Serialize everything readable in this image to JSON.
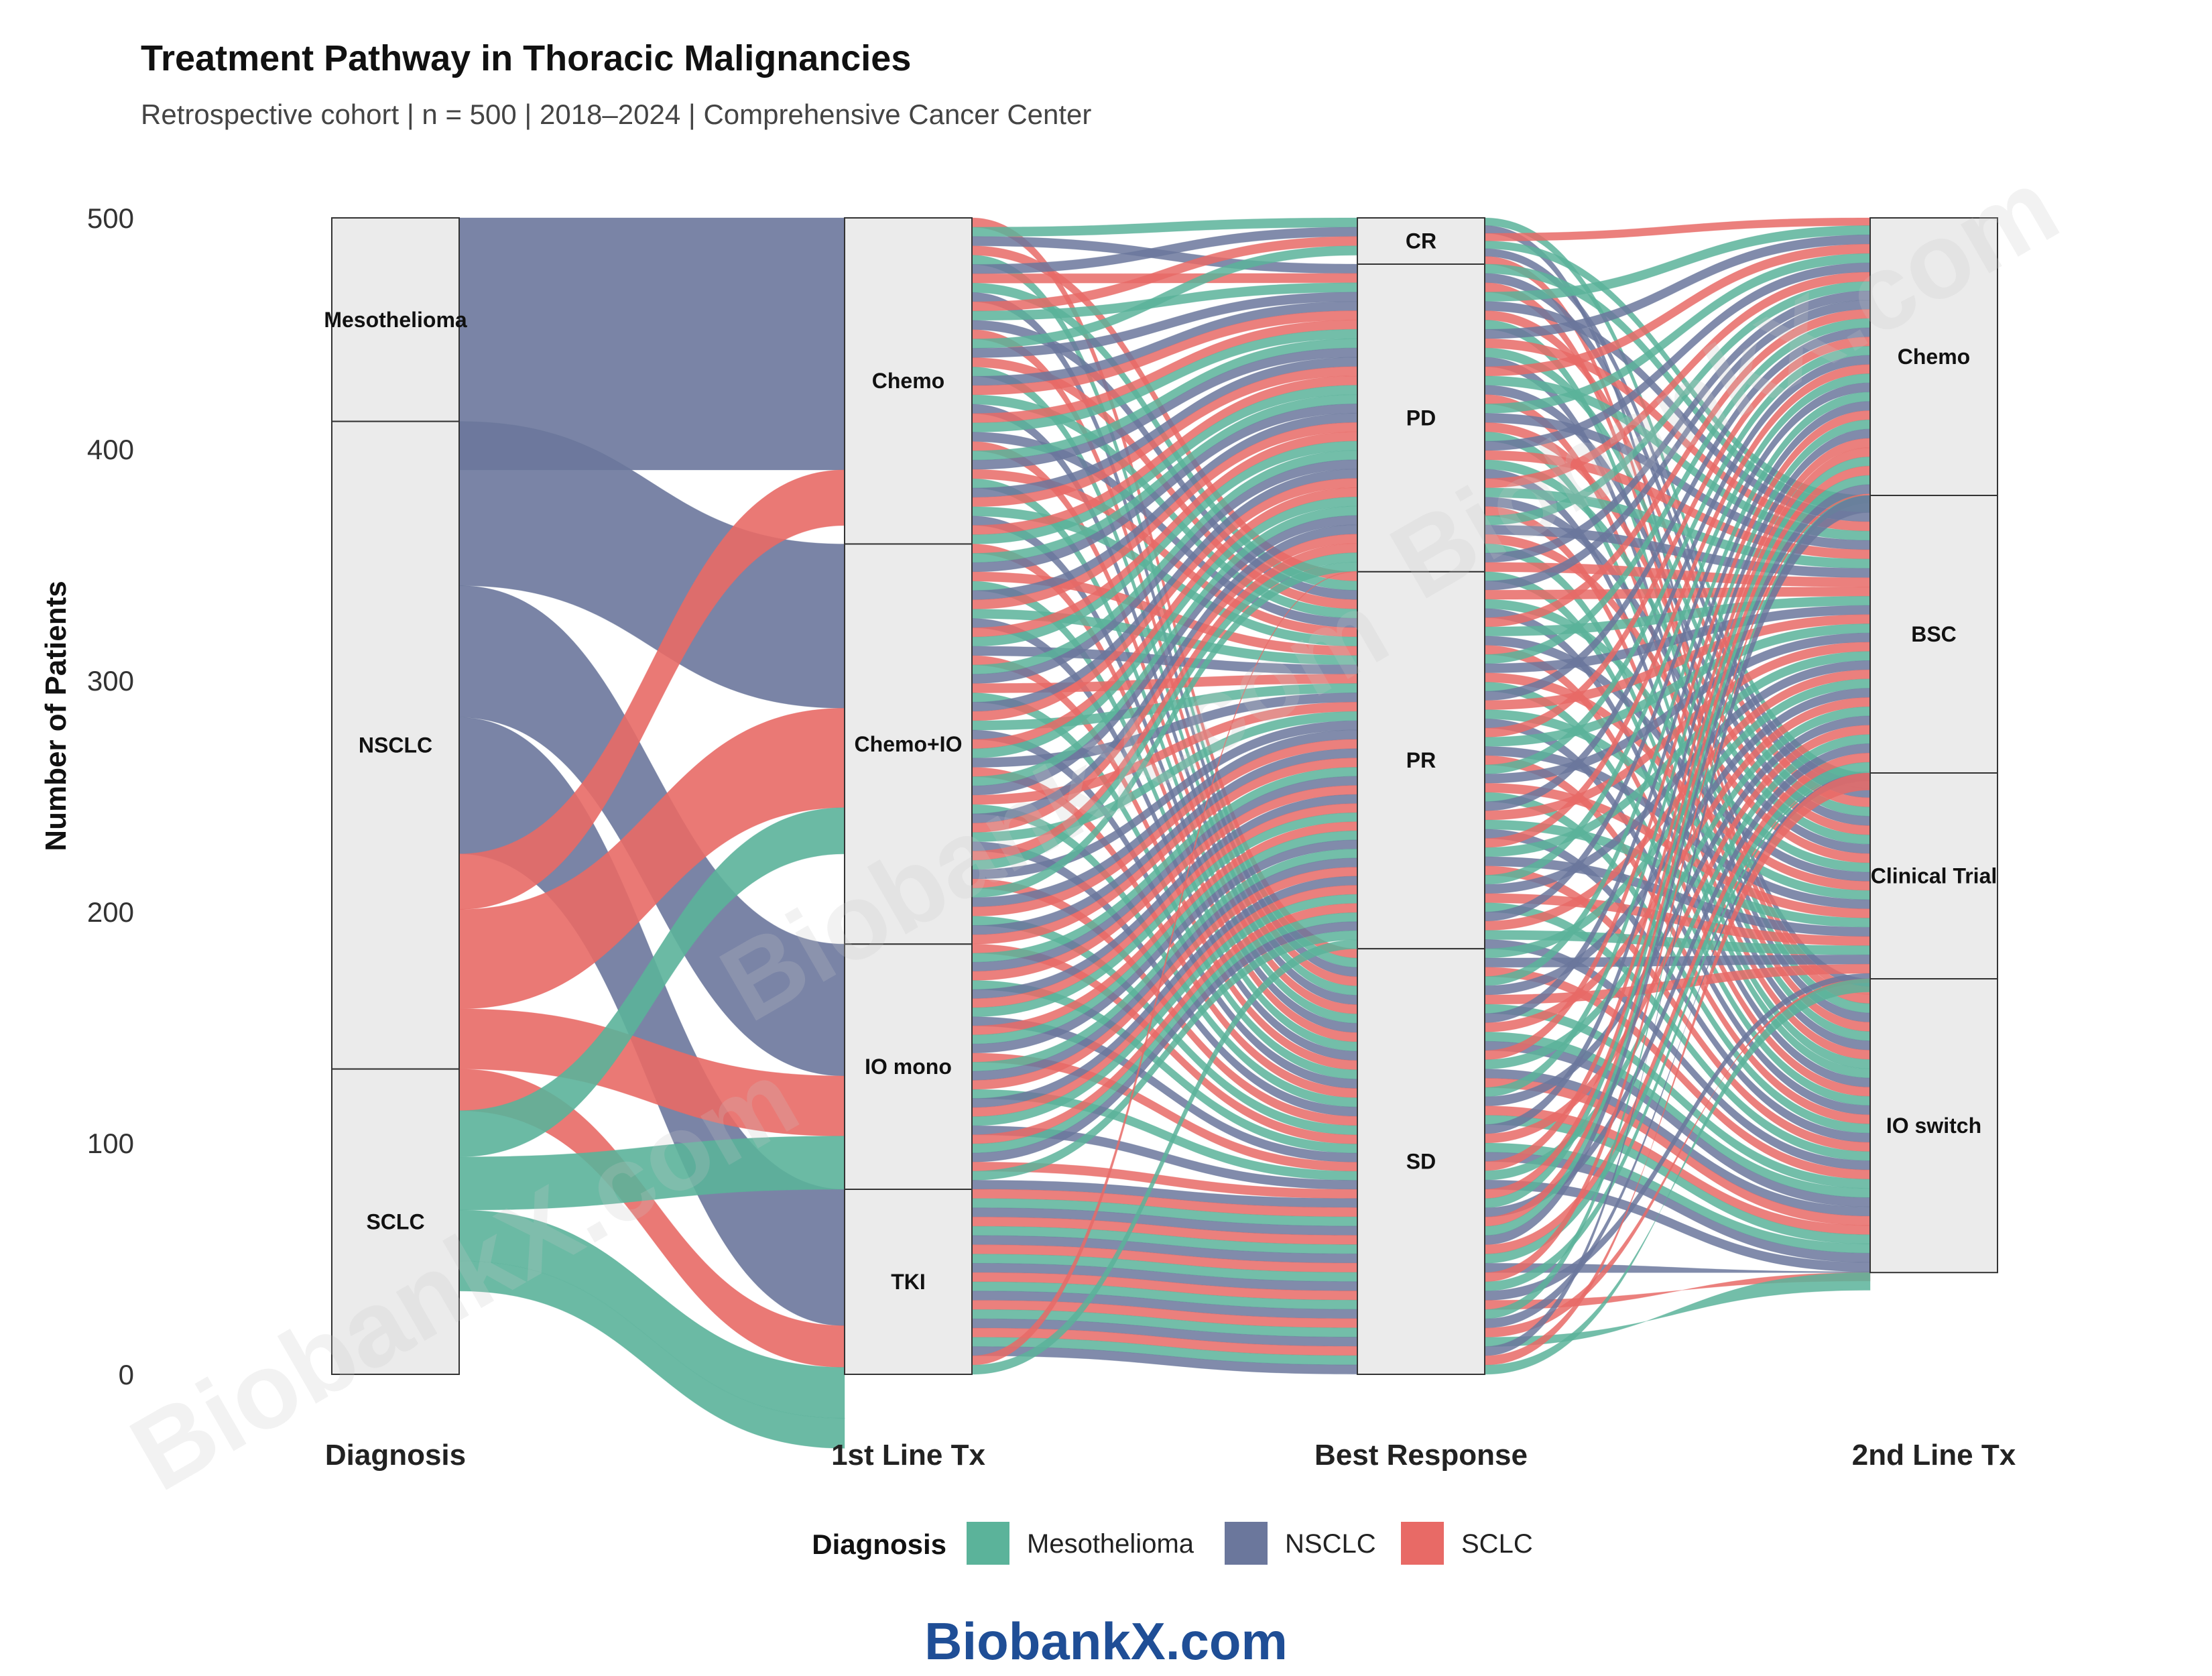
{
  "chart_data": {
    "type": "alluvial",
    "title": "Treatment Pathway in Thoracic Malignancies",
    "subtitle": "Retrospective cohort | n = 500 | 2018–2024 | Comprehensive Cancer Center",
    "ylabel": "Number of Patients",
    "ylim": [
      0,
      500
    ],
    "yticks": [
      0,
      100,
      200,
      300,
      400,
      500
    ],
    "axes": [
      "Diagnosis",
      "1st Line Tx",
      "Best Response",
      "2nd Line Tx"
    ],
    "strata": [
      [
        {
          "name": "Mesothelioma",
          "count": 88
        },
        {
          "name": "NSCLC",
          "count": 280
        },
        {
          "name": "SCLC",
          "count": 132
        }
      ],
      [
        {
          "name": "Chemo",
          "count": 141
        },
        {
          "name": "Chemo+IO",
          "count": 173
        },
        {
          "name": "IO mono",
          "count": 106
        },
        {
          "name": "TKI",
          "count": 80
        }
      ],
      [
        {
          "name": "CR",
          "count": 20
        },
        {
          "name": "PD",
          "count": 133
        },
        {
          "name": "PR",
          "count": 163
        },
        {
          "name": "SD",
          "count": 184
        }
      ],
      [
        {
          "name": "Chemo",
          "count": 120
        },
        {
          "name": "BSC",
          "count": 120
        },
        {
          "name": "Clinical Trial",
          "count": 89
        },
        {
          "name": "IO switch",
          "count": 127
        }
      ]
    ],
    "axis_flows": [
      [
        {
          "from": "Mesothelioma",
          "to": "Chemo",
          "group": "NSCLC",
          "value": 109
        },
        {
          "from": "NSCLC",
          "to": "Chemo+IO",
          "group": "NSCLC",
          "value": 71
        },
        {
          "from": "NSCLC",
          "to": "IO mono",
          "group": "NSCLC",
          "value": 57
        },
        {
          "from": "NSCLC",
          "to": "TKI",
          "group": "NSCLC",
          "value": 59
        },
        {
          "from": "NSCLC",
          "to": "Chemo",
          "group": "SCLC",
          "value": 24
        },
        {
          "from": "NSCLC",
          "to": "Chemo+IO",
          "group": "SCLC",
          "value": 43
        },
        {
          "from": "NSCLC",
          "to": "IO mono",
          "group": "SCLC",
          "value": 26
        },
        {
          "from": "SCLC",
          "to": "TKI",
          "group": "SCLC",
          "value": 18
        },
        {
          "from": "SCLC",
          "to": "Chemo+IO",
          "group": "Mesothelioma",
          "value": 20
        },
        {
          "from": "SCLC",
          "to": "IO mono",
          "group": "Mesothelioma",
          "value": 23
        },
        {
          "from": "SCLC",
          "to": "TKI",
          "group": "Mesothelioma",
          "value": 22
        },
        {
          "from": "SCLC",
          "to": "TKI",
          "group": "Mesothelioma",
          "value": 13
        }
      ]
    ],
    "colors": {
      "Mesothelioma": "#5bb39a",
      "NSCLC": "#6b779c",
      "SCLC": "#e86a66",
      "node_fill": "#ebebeb",
      "node_stroke": "#333333"
    },
    "legend": {
      "title": "Diagnosis",
      "entries": [
        "Mesothelioma",
        "NSCLC",
        "SCLC"
      ],
      "position": "bottom"
    }
  },
  "watermark_texts": [
    "BiobankX.com",
    "BiobankX.com",
    "BiobankX.com"
  ],
  "footer": {
    "brand": "BiobankX.com"
  }
}
